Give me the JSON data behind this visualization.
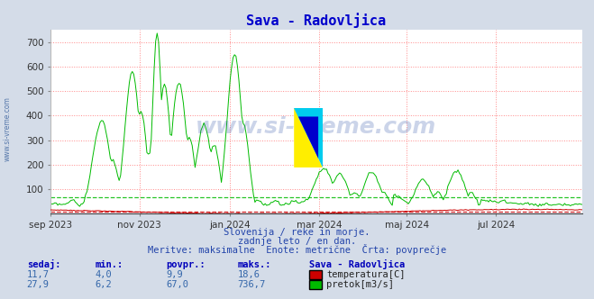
{
  "title": "Sava - Radovljica",
  "title_color": "#0000cc",
  "bg_color": "#d4dce8",
  "plot_bg_color": "#ffffff",
  "watermark": "www.si-vreme.com",
  "subtitle_lines": [
    "Slovenija / reke in morje.",
    "zadnje leto / en dan.",
    "Meritve: maksimalne  Enote: metrične  Črta: povprečje"
  ],
  "ylim": [
    0,
    750
  ],
  "yticks": [
    100,
    200,
    300,
    400,
    500,
    600,
    700
  ],
  "grid_color": "#ff8888",
  "grid_style": ":",
  "temp_color": "#cc0000",
  "flow_color": "#00bb00",
  "legend_title": "Sava - Radovljica",
  "legend_items": [
    {
      "label": "temperatura[C]",
      "color": "#cc0000"
    },
    {
      "label": "pretok[m3/s]",
      "color": "#00bb00"
    }
  ],
  "stats_temp": [
    11.7,
    4.0,
    9.9,
    18.6
  ],
  "stats_flow": [
    27.9,
    6.2,
    67.0,
    736.7
  ],
  "temp_avg_value": 9.9,
  "flow_avg_value": 67.0,
  "x_tick_labels": [
    "sep 2023",
    "nov 2023",
    "jan 2024",
    "mar 2024",
    "maj 2024",
    "jul 2024"
  ],
  "x_tick_positions": [
    0,
    61,
    123,
    184,
    244,
    305
  ],
  "n_points": 365,
  "sidebar_text": "www.si-vreme.com",
  "sidebar_color": "#5577aa"
}
